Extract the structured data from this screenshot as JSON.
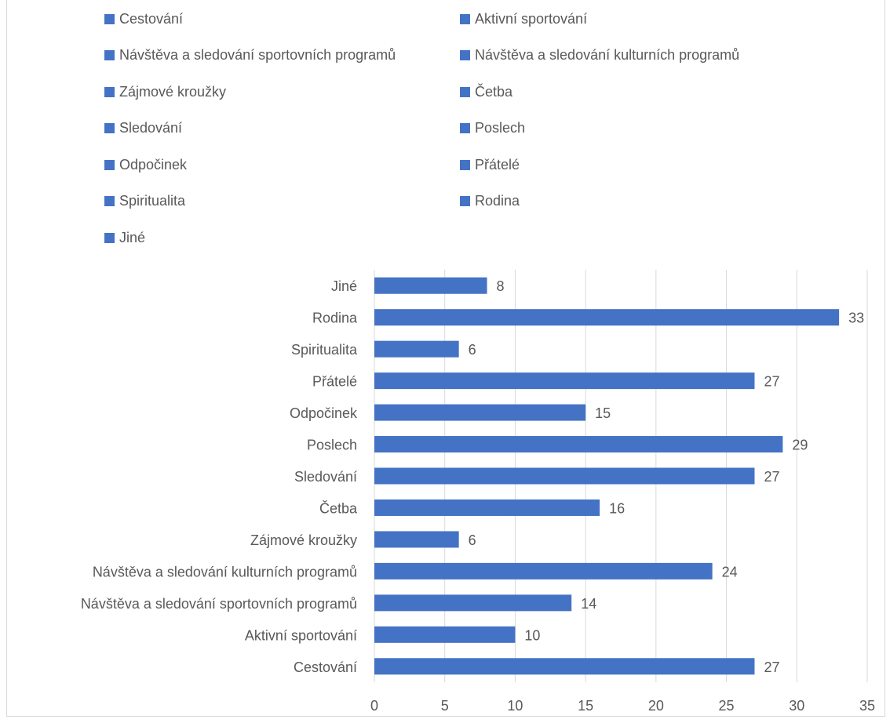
{
  "colors": {
    "bar": "#4472c4",
    "grid": "#d9d9d9",
    "text": "#595959"
  },
  "legend": {
    "items": [
      {
        "label": "Cestování"
      },
      {
        "label": "Aktivní sportování"
      },
      {
        "label": "Návštěva a sledování sportovních programů"
      },
      {
        "label": "Návštěva a sledování kulturních programů"
      },
      {
        "label": "Zájmové kroužky"
      },
      {
        "label": "Četba"
      },
      {
        "label": "Sledování"
      },
      {
        "label": "Poslech"
      },
      {
        "label": "Odpočinek"
      },
      {
        "label": "Přátelé"
      },
      {
        "label": "Spiritualita"
      },
      {
        "label": "Rodina"
      },
      {
        "label": "Jiné"
      }
    ]
  },
  "chart_data": {
    "type": "bar",
    "orientation": "horizontal",
    "categories": [
      "Cestování",
      "Aktivní sportování",
      "Návštěva a sledování sportovních programů",
      "Návštěva a sledování kulturních programů",
      "Zájmové kroužky",
      "Četba",
      "Sledování",
      "Poslech",
      "Odpočinek",
      "Přátelé",
      "Spiritualita",
      "Rodina",
      "Jiné"
    ],
    "values": [
      27,
      10,
      14,
      24,
      6,
      16,
      27,
      29,
      15,
      27,
      6,
      33,
      8
    ],
    "xlim": [
      0,
      35
    ],
    "xticks": [
      "0",
      "5",
      "10",
      "15",
      "20",
      "25",
      "30",
      "35"
    ],
    "grid": true,
    "data_labels": true,
    "legend_position": "top",
    "title": "",
    "xlabel": "",
    "ylabel": ""
  }
}
